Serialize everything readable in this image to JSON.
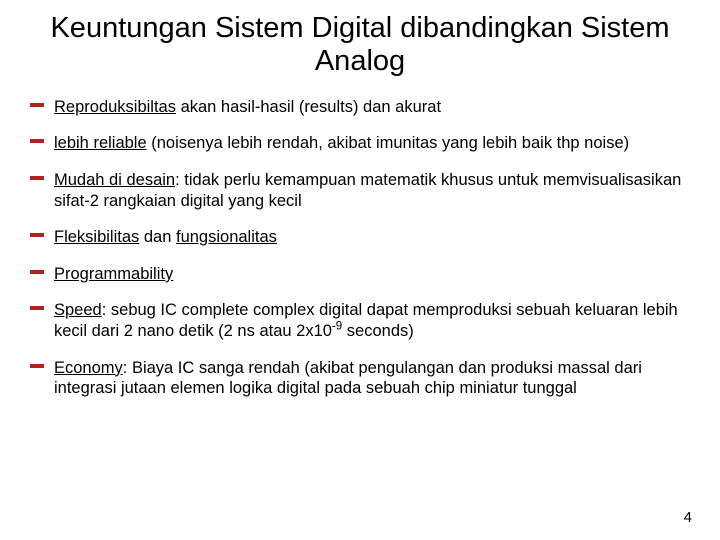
{
  "title": "Keuntungan Sistem Digital dibandingkan Sistem Analog",
  "bullet_color": "#b22222",
  "text_color": "#000000",
  "background_color": "#ffffff",
  "title_fontsize": 29,
  "body_fontsize": 16.5,
  "bullets": [
    {
      "lead": "Reproduksibiltas",
      "rest": "  akan hasil-hasil (results) dan akurat"
    },
    {
      "lead": "lebih reliable",
      "rest": " (noisenya lebih rendah, akibat imunitas yang lebih baik thp noise)"
    },
    {
      "lead": "Mudah di desain",
      "rest": ": tidak perlu kemampuan matematik khusus untuk memvisualisasikan sifat-2 rangkaian digital yang kecil"
    },
    {
      "lead": "Fleksibilitas",
      "mid": " dan ",
      "lead2": "fungsionalitas",
      "rest": ""
    },
    {
      "lead": "Programmability",
      "rest": ""
    },
    {
      "lead": "Speed",
      "rest_pre": ": sebug IC complete complex digital dapat memproduksi sebuah keluaran lebih kecil dari  2 nano detik (2 ns atau 2x10",
      "sup": "-9",
      "rest_post": " seconds)"
    },
    {
      "lead": "Economy",
      "rest": ": Biaya IC sanga rendah (akibat pengulangan dan produksi massal dari integrasi jutaan elemen logika digital pada sebuah chip miniatur tunggal"
    }
  ],
  "page_number": "4"
}
